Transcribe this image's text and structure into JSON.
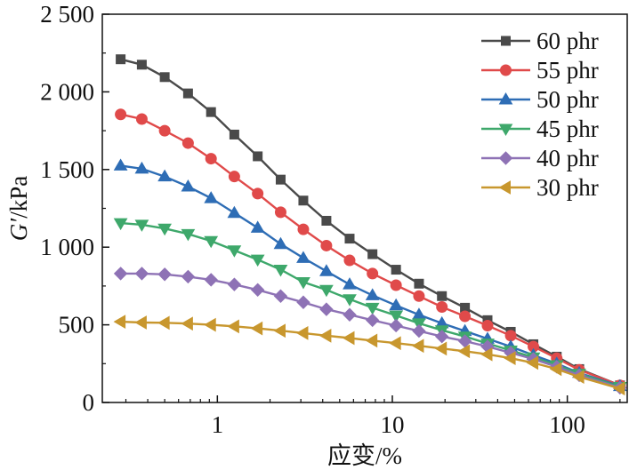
{
  "chart_data": {
    "type": "line",
    "title": "",
    "xlabel": "应变/%",
    "ylabel": "G′/kPa",
    "xscale": "log",
    "xlim": [
      0.22,
      220
    ],
    "ylim": [
      0,
      2500
    ],
    "xticks": [
      {
        "value": 1,
        "label": "1"
      },
      {
        "value": 10,
        "label": "10"
      },
      {
        "value": 100,
        "label": "100"
      }
    ],
    "yticks": [
      {
        "value": 0,
        "label": "0"
      },
      {
        "value": 500,
        "label": "500"
      },
      {
        "value": 1000,
        "label": "1 000"
      },
      {
        "value": 1500,
        "label": "1 500"
      },
      {
        "value": 2000,
        "label": "2 000"
      },
      {
        "value": 2500,
        "label": "2 500"
      }
    ],
    "legend_position": "top-right",
    "x": [
      0.28,
      0.37,
      0.5,
      0.68,
      0.92,
      1.25,
      1.7,
      2.3,
      3.1,
      4.2,
      5.7,
      7.7,
      10.5,
      14.2,
      19.2,
      26,
      35,
      47.5,
      64,
      87,
      117,
      200
    ],
    "series": [
      {
        "name": "60 phr",
        "color": "#4a4a4a",
        "marker": "square",
        "values": [
          2210,
          2175,
          2095,
          1990,
          1870,
          1725,
          1585,
          1435,
          1300,
          1170,
          1055,
          955,
          855,
          765,
          685,
          610,
          530,
          455,
          375,
          295,
          215,
          110
        ]
      },
      {
        "name": "55 phr",
        "color": "#e04a4a",
        "marker": "circle",
        "values": [
          1855,
          1825,
          1750,
          1670,
          1570,
          1455,
          1345,
          1225,
          1115,
          1010,
          915,
          830,
          755,
          685,
          615,
          555,
          495,
          430,
          360,
          285,
          210,
          110
        ]
      },
      {
        "name": "50 phr",
        "color": "#2e6db5",
        "marker": "triangle-up",
        "values": [
          1525,
          1505,
          1455,
          1390,
          1315,
          1220,
          1125,
          1020,
          930,
          845,
          760,
          690,
          625,
          565,
          510,
          460,
          410,
          360,
          305,
          250,
          190,
          105
        ]
      },
      {
        "name": "45 phr",
        "color": "#3ea86b",
        "marker": "triangle-down",
        "values": [
          1155,
          1145,
          1120,
          1085,
          1040,
          980,
          920,
          855,
          775,
          725,
          665,
          610,
          560,
          510,
          465,
          425,
          380,
          335,
          290,
          240,
          185,
          100
        ]
      },
      {
        "name": "40 phr",
        "color": "#8e72b5",
        "marker": "diamond",
        "values": [
          830,
          830,
          825,
          810,
          790,
          760,
          725,
          685,
          645,
          600,
          565,
          530,
          495,
          460,
          425,
          395,
          360,
          320,
          280,
          230,
          175,
          95
        ]
      },
      {
        "name": "30 phr",
        "color": "#c8972e",
        "marker": "triangle-left",
        "values": [
          520,
          515,
          513,
          508,
          500,
          490,
          477,
          462,
          447,
          430,
          415,
          398,
          382,
          365,
          347,
          330,
          310,
          285,
          255,
          215,
          165,
          90
        ]
      }
    ]
  }
}
